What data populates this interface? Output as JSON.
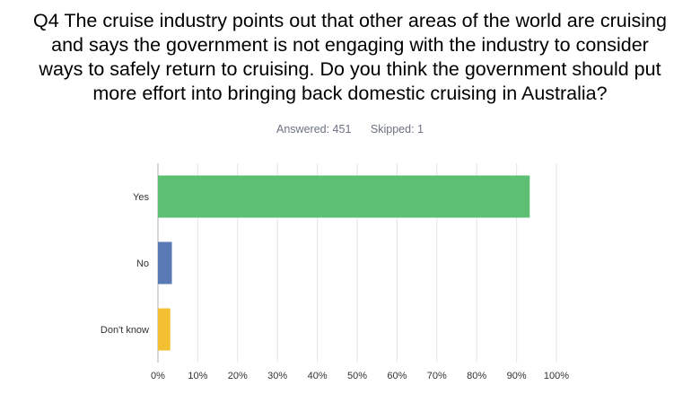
{
  "question": {
    "title_lines": [
      "Q4 The cruise industry points out that other areas of the world are cruising",
      "and says the government is not engaging with the industry to consider",
      "ways to safely return to cruising.  Do you think the government should put",
      "more effort into bringing back domestic cruising in Australia?"
    ],
    "answered": "Answered: 451",
    "skipped": "Skipped: 1"
  },
  "colors": {
    "yes": "#5dbf74",
    "no": "#5a7ab6",
    "dont_know": "#f4c033",
    "grid": "#e5e5e5",
    "axis": "#b0b0b0"
  },
  "chart_data": {
    "type": "bar",
    "orientation": "horizontal",
    "categories": [
      "Yes",
      "No",
      "Don't know"
    ],
    "values": [
      93.3,
      3.5,
      3.1
    ],
    "xlim": [
      0,
      100
    ],
    "xticks": [
      "0%",
      "10%",
      "20%",
      "30%",
      "40%",
      "50%",
      "60%",
      "70%",
      "80%",
      "90%",
      "100%"
    ],
    "grid": true,
    "legend": "none"
  }
}
